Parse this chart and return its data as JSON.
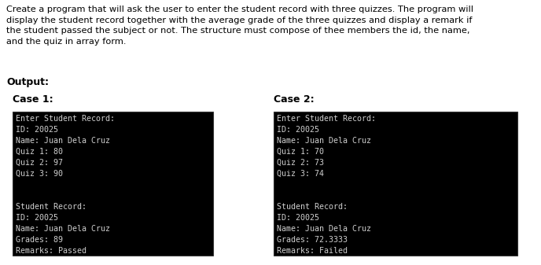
{
  "description_text": "Create a program that will ask the user to enter the student record with three quizzes. The program will\ndisplay the student record together with the average grade of the three quizzes and display a remark if\nthe student passed the subject or not. The structure must compose of thee members the id, the name,\nand the quiz in array form.",
  "output_label": "Output:",
  "case1_label": "Case 1:",
  "case2_label": "Case 2:",
  "case1_terminal": "Enter Student Record:\nID: 20025\nName: Juan Dela Cruz\nQuiz 1: 80\nQuiz 2: 97\nQuiz 3: 90\n\n\nStudent Record:\nID: 20025\nName: Juan Dela Cruz\nGrades: 89\nRemarks: Passed",
  "case2_terminal": "Enter Student Record:\nID: 20025\nName: Juan Dela Cruz\nQuiz 1: 70\nQuiz 2: 73\nQuiz 3: 74\n\n\nStudent Record:\nID: 20025\nName: Juan Dela Cruz\nGrades: 72.3333\nRemarks: Failed",
  "bg_color": "#ffffff",
  "terminal_bg": "#000000",
  "terminal_fg": "#d0d0d0",
  "desc_fontsize": 8.2,
  "output_fontsize": 9.0,
  "case_fontsize": 9.0,
  "terminal_fontsize": 7.2
}
